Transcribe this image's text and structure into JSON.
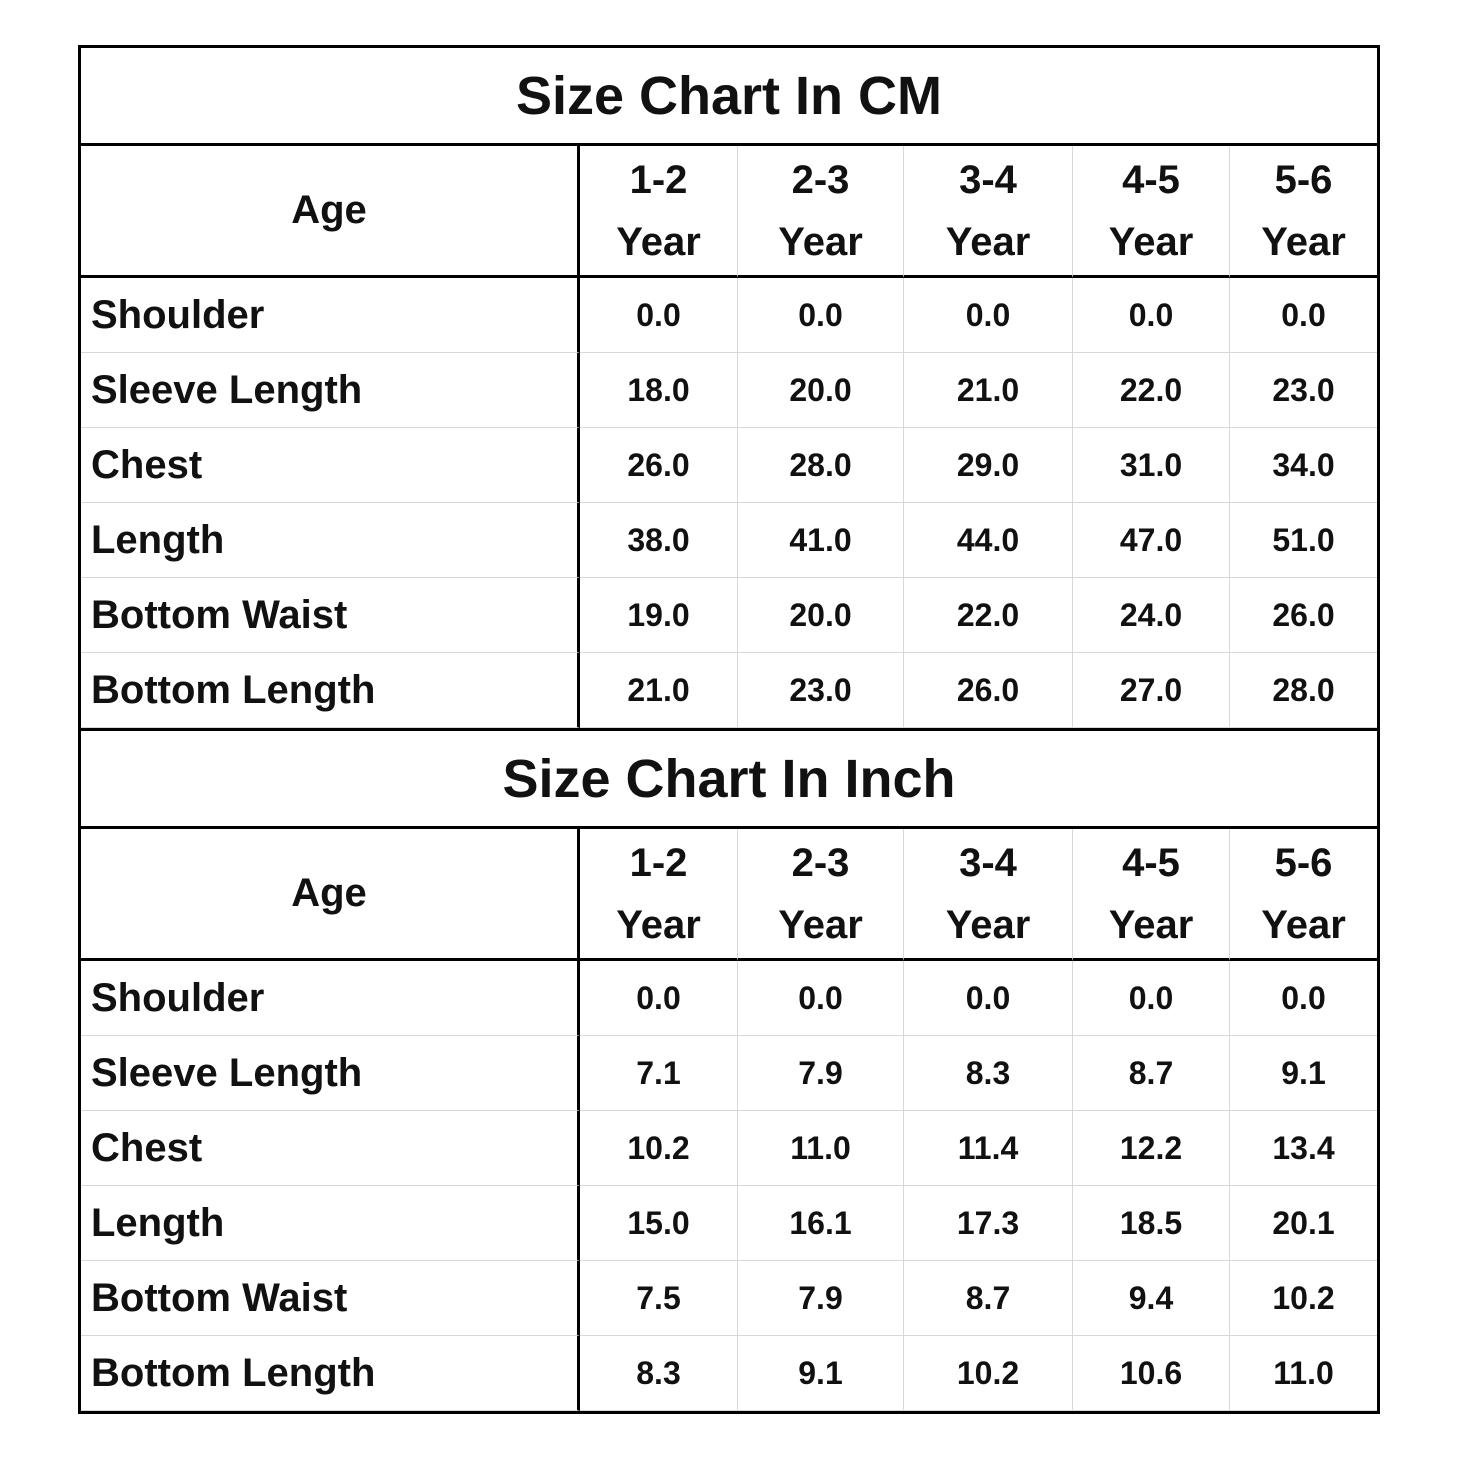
{
  "tables": [
    {
      "title": "Size Chart In CM",
      "header": {
        "label": "Age",
        "columns": [
          {
            "range": "1-2",
            "unit": "Year"
          },
          {
            "range": "2-3",
            "unit": "Year"
          },
          {
            "range": "3-4",
            "unit": "Year"
          },
          {
            "range": "4-5",
            "unit": "Year"
          },
          {
            "range": "5-6",
            "unit": "Year"
          }
        ]
      },
      "rows": [
        {
          "label": "Shoulder",
          "values": [
            "0.0",
            "0.0",
            "0.0",
            "0.0",
            "0.0"
          ]
        },
        {
          "label": "Sleeve Length",
          "values": [
            "18.0",
            "20.0",
            "21.0",
            "22.0",
            "23.0"
          ]
        },
        {
          "label": "Chest",
          "values": [
            "26.0",
            "28.0",
            "29.0",
            "31.0",
            "34.0"
          ]
        },
        {
          "label": "Length",
          "values": [
            "38.0",
            "41.0",
            "44.0",
            "47.0",
            "51.0"
          ]
        },
        {
          "label": "Bottom Waist",
          "values": [
            "19.0",
            "20.0",
            "22.0",
            "24.0",
            "26.0"
          ]
        },
        {
          "label": "Bottom Length",
          "values": [
            "21.0",
            "23.0",
            "26.0",
            "27.0",
            "28.0"
          ]
        }
      ]
    },
    {
      "title": "Size Chart In Inch",
      "header": {
        "label": "Age",
        "columns": [
          {
            "range": "1-2",
            "unit": "Year"
          },
          {
            "range": "2-3",
            "unit": "Year"
          },
          {
            "range": "3-4",
            "unit": "Year"
          },
          {
            "range": "4-5",
            "unit": "Year"
          },
          {
            "range": "5-6",
            "unit": "Year"
          }
        ]
      },
      "rows": [
        {
          "label": "Shoulder",
          "values": [
            "0.0",
            "0.0",
            "0.0",
            "0.0",
            "0.0"
          ]
        },
        {
          "label": "Sleeve Length",
          "values": [
            "7.1",
            "7.9",
            "8.3",
            "8.7",
            "9.1"
          ]
        },
        {
          "label": "Chest",
          "values": [
            "10.2",
            "11.0",
            "11.4",
            "12.2",
            "13.4"
          ]
        },
        {
          "label": "Length",
          "values": [
            "15.0",
            "16.1",
            "17.3",
            "18.5",
            "20.1"
          ]
        },
        {
          "label": "Bottom Waist",
          "values": [
            "7.5",
            "7.9",
            "8.7",
            "9.4",
            "10.2"
          ]
        },
        {
          "label": "Bottom Length",
          "values": [
            "8.3",
            "9.1",
            "10.2",
            "10.6",
            "11.0"
          ]
        }
      ]
    }
  ]
}
